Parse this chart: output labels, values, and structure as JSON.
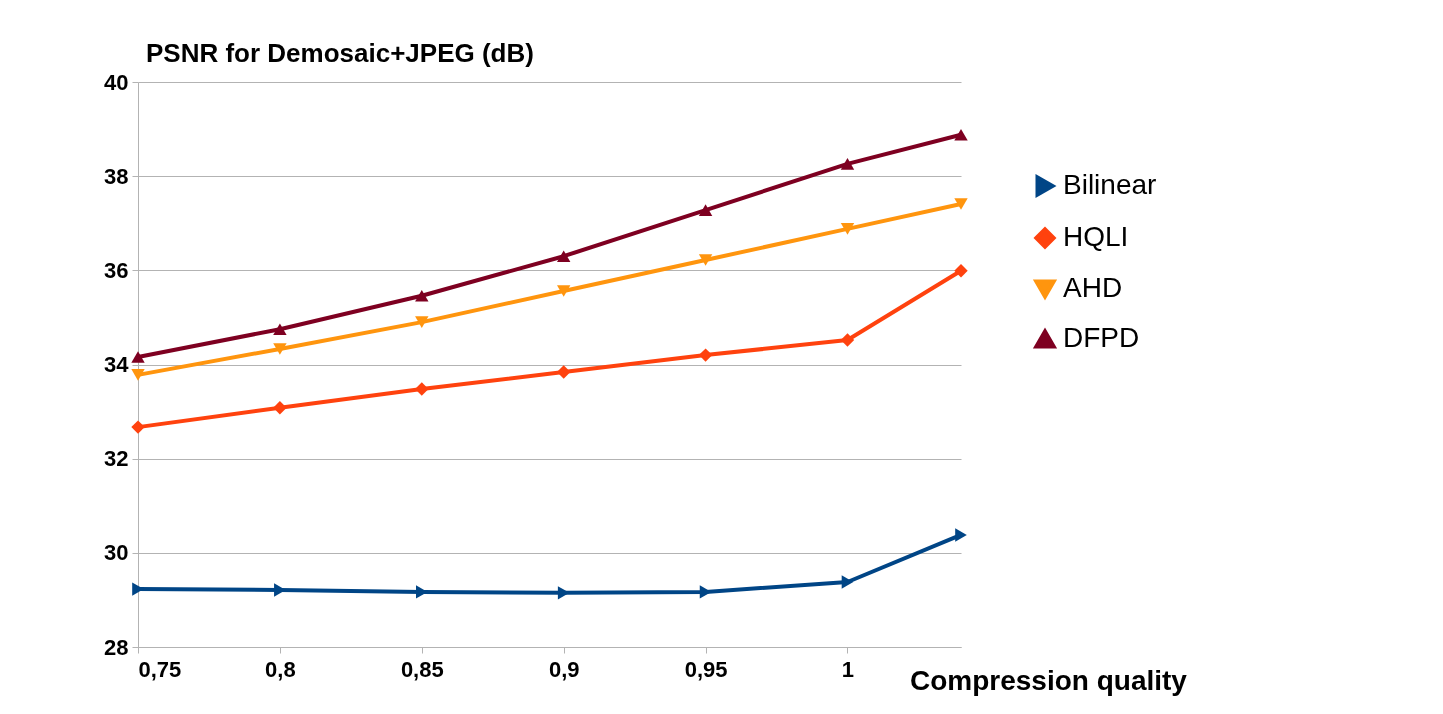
{
  "chart_data": {
    "type": "line",
    "title": "PSNR for Demosaic+JPEG (dB)",
    "xlabel": "Compression quality",
    "x": [
      0.75,
      0.8,
      0.85,
      0.9,
      0.95,
      1,
      1.04
    ],
    "series": [
      {
        "name": "Bilinear",
        "color": "#004586",
        "marker": "triangle-right",
        "values": [
          29.23,
          29.21,
          29.17,
          29.15,
          29.17,
          29.38,
          30.38
        ]
      },
      {
        "name": "HQLI",
        "color": "#ff420e",
        "marker": "diamond",
        "values": [
          32.67,
          33.08,
          33.48,
          33.84,
          34.2,
          34.52,
          35.99
        ]
      },
      {
        "name": "AHD",
        "color": "#ff950e",
        "marker": "triangle-down",
        "values": [
          33.78,
          34.33,
          34.9,
          35.56,
          36.22,
          36.88,
          37.41
        ]
      },
      {
        "name": "DFPD",
        "color": "#7e0021",
        "marker": "triangle-up",
        "values": [
          34.16,
          34.75,
          35.46,
          36.3,
          37.28,
          38.26,
          38.88
        ]
      }
    ],
    "xlim": [
      0.75,
      1.04
    ],
    "xticks": [
      {
        "value": 0.75,
        "label": "0,75"
      },
      {
        "value": 0.8,
        "label": "0,8"
      },
      {
        "value": 0.85,
        "label": "0,85"
      },
      {
        "value": 0.9,
        "label": "0,9"
      },
      {
        "value": 0.95,
        "label": "0,95"
      },
      1
    ],
    "ylim": [
      28,
      40
    ],
    "yticks": [
      28,
      30,
      32,
      34,
      36,
      38,
      40
    ],
    "grid": "y",
    "legend": "right",
    "line_style": "solid"
  }
}
